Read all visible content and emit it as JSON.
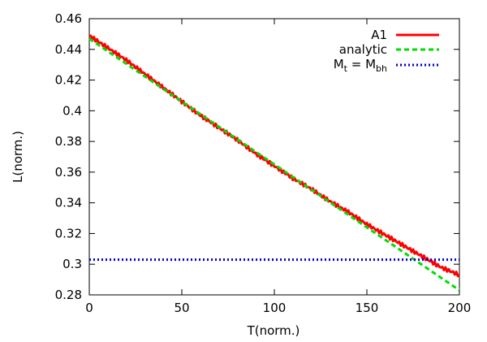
{
  "chart_data": {
    "type": "line",
    "title": "",
    "xlabel": "T(norm.)",
    "ylabel": "L(norm.)",
    "xlim": [
      0,
      200
    ],
    "ylim": [
      0.28,
      0.46
    ],
    "xticks": [
      "0",
      "50",
      "100",
      "150",
      "200"
    ],
    "yticks": [
      "0.28",
      "0.3",
      "0.32",
      "0.34",
      "0.36",
      "0.38",
      "0.4",
      "0.42",
      "0.44",
      "0.46"
    ],
    "grid": false,
    "legend_position": "top-right",
    "series": [
      {
        "name": "A1",
        "color": "#ff0000",
        "style": "solid",
        "x": [
          0,
          10,
          20,
          30,
          40,
          50,
          60,
          70,
          80,
          90,
          100,
          110,
          120,
          130,
          140,
          150,
          160,
          170,
          180,
          190,
          200
        ],
        "y": [
          0.449,
          0.441,
          0.433,
          0.424,
          0.415,
          0.406,
          0.397,
          0.389,
          0.381,
          0.372,
          0.364,
          0.356,
          0.349,
          0.341,
          0.334,
          0.326,
          0.319,
          0.312,
          0.305,
          0.298,
          0.293
        ]
      },
      {
        "name": "analytic",
        "color": "#00dd00",
        "style": "dashed",
        "x": [
          0,
          200
        ],
        "y": [
          0.447,
          0.283
        ]
      },
      {
        "name_parts": {
          "main": "M",
          "sub1": "t",
          "eq": " = M",
          "sub2": "bh"
        },
        "color": "#0000cc",
        "style": "dotted",
        "x": [
          0,
          200
        ],
        "y": [
          0.303,
          0.303
        ]
      }
    ]
  }
}
